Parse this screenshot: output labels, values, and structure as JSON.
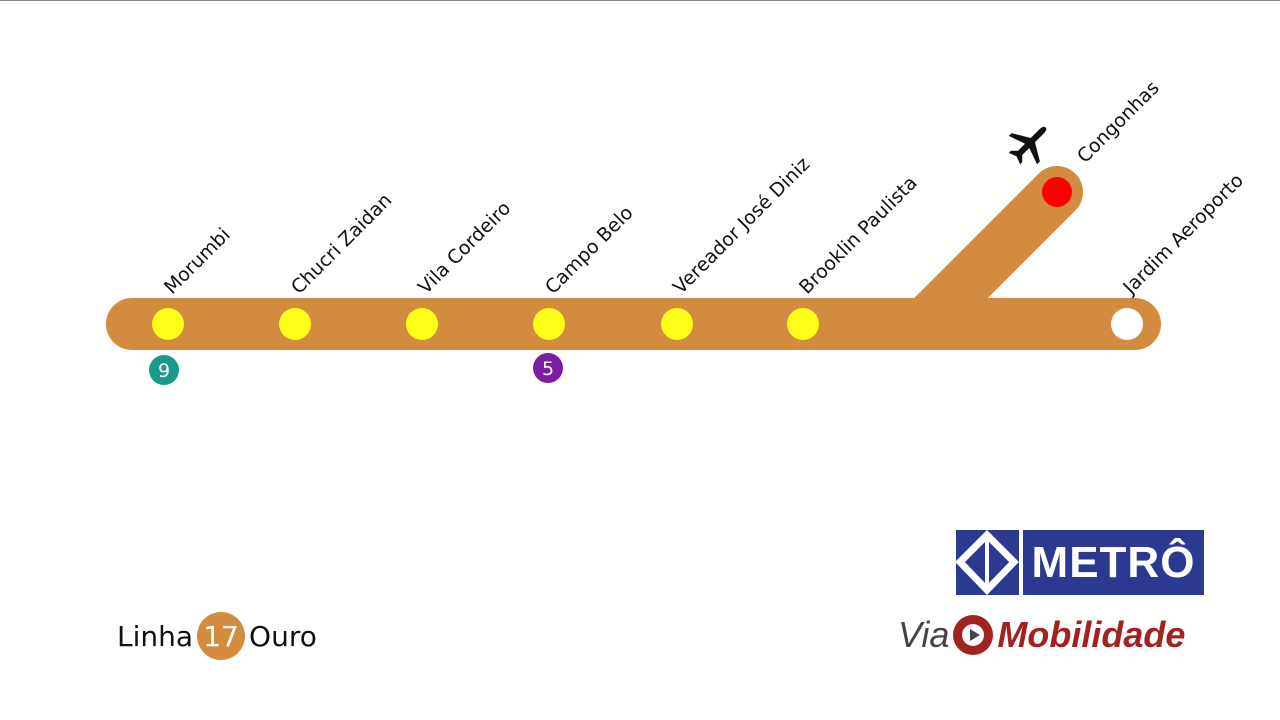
{
  "line": {
    "color": "#d38b3f",
    "legend_prefix": "Linha",
    "number": "17",
    "name": "Ouro"
  },
  "stations": [
    {
      "name": "Morumbi",
      "color": "#ffff1a",
      "transfer": "9",
      "transfer_color": "#1a9b8a"
    },
    {
      "name": "Chucri Zaidan",
      "color": "#ffff1a"
    },
    {
      "name": "Vila Cordeiro",
      "color": "#ffff1a"
    },
    {
      "name": "Campo Belo",
      "color": "#ffff1a",
      "transfer": "5",
      "transfer_color": "#7b1fa2"
    },
    {
      "name": "Vereador José Diniz",
      "color": "#ffff1a"
    },
    {
      "name": "Brooklin Paulista",
      "color": "#ffff1a"
    },
    {
      "name": "Congonhas",
      "color": "#ff0000",
      "icon": "airplane-icon"
    },
    {
      "name": "Jardim Aeroporto",
      "color": "#ffffff"
    }
  ],
  "logos": {
    "metro": "METRÔ",
    "via_prefix": "Via",
    "via_name": "Mobilidade"
  }
}
